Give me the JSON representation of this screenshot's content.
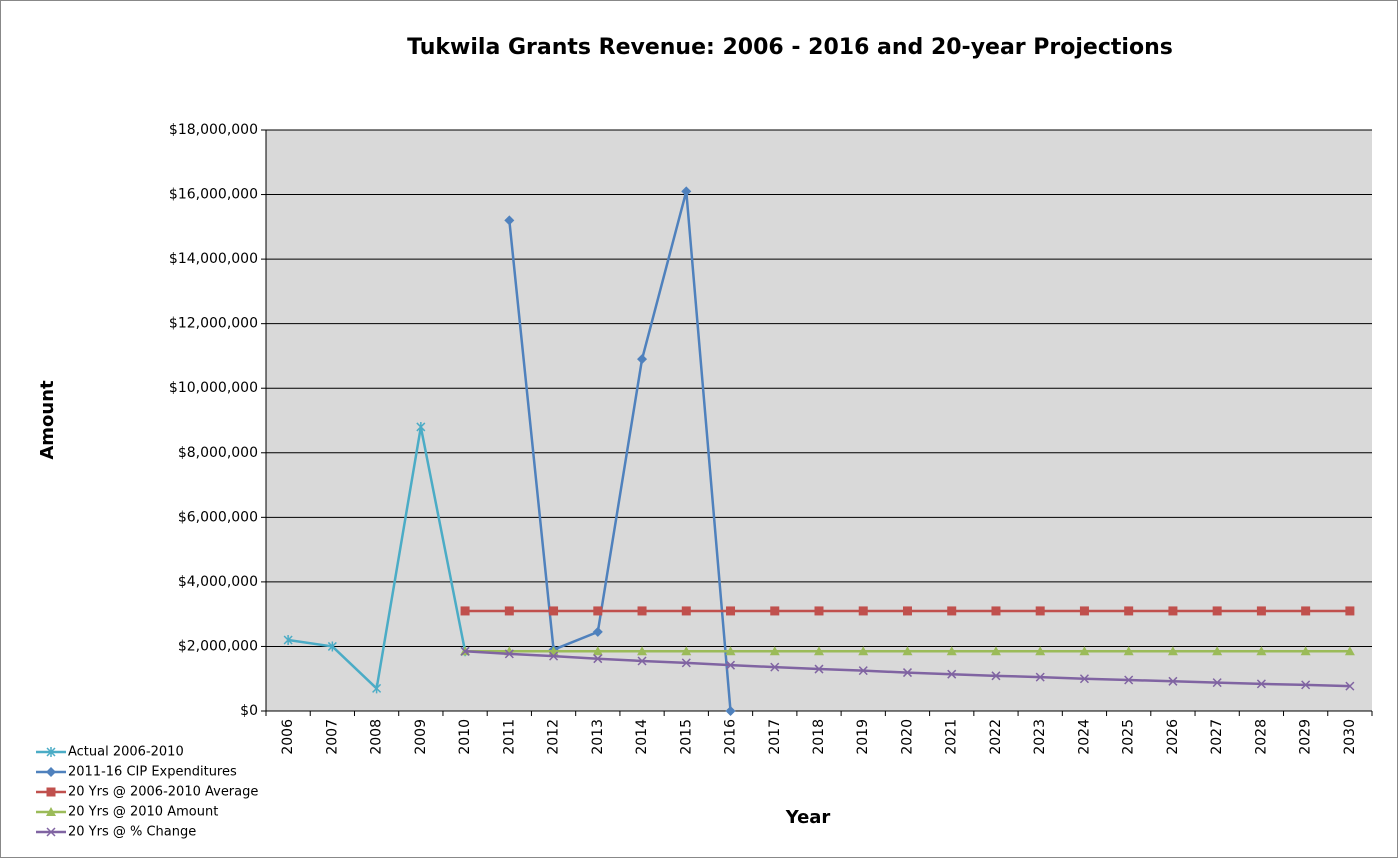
{
  "chart_data": {
    "type": "line",
    "title": "Tukwila Grants Revenue: 2006 - 2016 and 20-year Projections",
    "x_label": "Year",
    "y_label": "Amount",
    "categories": [
      "2006",
      "2007",
      "2008",
      "2009",
      "2010",
      "2011",
      "2012",
      "2013",
      "2014",
      "2015",
      "2016",
      "2017",
      "2018",
      "2019",
      "2020",
      "2021",
      "2022",
      "2023",
      "2024",
      "2025",
      "2026",
      "2027",
      "2028",
      "2029",
      "2030"
    ],
    "series": [
      {
        "name": "Actual 2006-2010",
        "color": "#4bacc6",
        "marker": "asterisk",
        "values": [
          2200000,
          2000000,
          700000,
          8800000,
          1850000,
          null,
          null,
          null,
          null,
          null,
          null,
          null,
          null,
          null,
          null,
          null,
          null,
          null,
          null,
          null,
          null,
          null,
          null,
          null,
          null
        ]
      },
      {
        "name": "2011-16 CIP Expenditures",
        "color": "#4f81bd",
        "marker": "diamond",
        "values": [
          null,
          null,
          null,
          null,
          null,
          15200000,
          1900000,
          2450000,
          10900000,
          16100000,
          0,
          null,
          null,
          null,
          null,
          null,
          null,
          null,
          null,
          null,
          null,
          null,
          null,
          null,
          null
        ]
      },
      {
        "name": "20 Yrs @ 2006-2010 Average",
        "color": "#c0504d",
        "marker": "square",
        "values": [
          null,
          null,
          null,
          null,
          3100000,
          3100000,
          3100000,
          3100000,
          3100000,
          3100000,
          3100000,
          3100000,
          3100000,
          3100000,
          3100000,
          3100000,
          3100000,
          3100000,
          3100000,
          3100000,
          3100000,
          3100000,
          3100000,
          3100000,
          3100000
        ]
      },
      {
        "name": "20 Yrs @ 2010 Amount",
        "color": "#9bbb59",
        "marker": "triangle",
        "values": [
          null,
          null,
          null,
          null,
          1850000,
          1850000,
          1850000,
          1850000,
          1850000,
          1850000,
          1850000,
          1850000,
          1850000,
          1850000,
          1850000,
          1850000,
          1850000,
          1850000,
          1850000,
          1850000,
          1850000,
          1850000,
          1850000,
          1850000,
          1850000
        ]
      },
      {
        "name": "20 Yrs @ % Change",
        "color": "#8064a2",
        "marker": "x",
        "values": [
          null,
          null,
          null,
          null,
          1850000,
          1770000,
          1700000,
          1620000,
          1550000,
          1490000,
          1420000,
          1360000,
          1300000,
          1250000,
          1190000,
          1140000,
          1090000,
          1050000,
          1000000,
          960000,
          920000,
          880000,
          840000,
          810000,
          770000
        ]
      }
    ],
    "ylim": [
      0,
      18000000
    ],
    "yticks": [
      {
        "value": 0,
        "label": "$0"
      },
      {
        "value": 2000000,
        "label": "$2,000,000"
      },
      {
        "value": 4000000,
        "label": "$4,000,000"
      },
      {
        "value": 6000000,
        "label": "$6,000,000"
      },
      {
        "value": 8000000,
        "label": "$8,000,000"
      },
      {
        "value": 10000000,
        "label": "$10,000,000"
      },
      {
        "value": 12000000,
        "label": "$12,000,000"
      },
      {
        "value": 14000000,
        "label": "$14,000,000"
      },
      {
        "value": 16000000,
        "label": "$16,000,000"
      },
      {
        "value": 18000000,
        "label": "$18,000,000"
      }
    ],
    "grid": true,
    "legend": "bottom-left"
  }
}
